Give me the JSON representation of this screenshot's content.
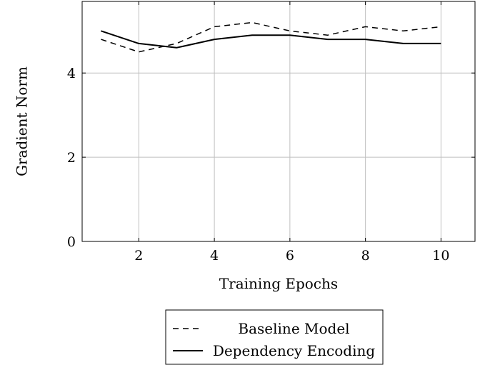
{
  "chart_data": {
    "type": "line",
    "title": "",
    "xlabel": "Training Epochs",
    "ylabel": "Gradient Norm",
    "xlim": [
      0.5,
      10.9
    ],
    "ylim": [
      0,
      5.7
    ],
    "xticks": [
      2,
      4,
      6,
      8,
      10
    ],
    "yticks": [
      0,
      2,
      4
    ],
    "grid": true,
    "legend_position": "below",
    "series": [
      {
        "name": "Baseline Model",
        "style": "dashed",
        "color": "#000000",
        "x": [
          1,
          2,
          3,
          4,
          5,
          6,
          7,
          8,
          9,
          10
        ],
        "y": [
          4.8,
          4.5,
          4.7,
          5.1,
          5.2,
          5.0,
          4.9,
          5.1,
          5.0,
          5.1
        ]
      },
      {
        "name": "Dependency Encoding",
        "style": "solid",
        "color": "#000000",
        "x": [
          1,
          2,
          3,
          4,
          5,
          6,
          7,
          8,
          9,
          10
        ],
        "y": [
          5.0,
          4.7,
          4.6,
          4.8,
          4.9,
          4.9,
          4.8,
          4.8,
          4.7,
          4.7
        ]
      }
    ]
  }
}
